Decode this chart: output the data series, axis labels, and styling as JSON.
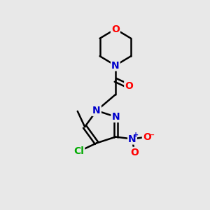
{
  "bg_color": "#e8e8e8",
  "bond_color": "#000000",
  "bond_width": 1.8,
  "atom_colors": {
    "C": "#000000",
    "N": "#0000cc",
    "O": "#ff0000",
    "Cl": "#00aa00"
  },
  "font_size": 10,
  "fig_width": 3.0,
  "fig_height": 3.0,
  "dpi": 100,
  "xlim": [
    0,
    10
  ],
  "ylim": [
    0,
    10
  ]
}
